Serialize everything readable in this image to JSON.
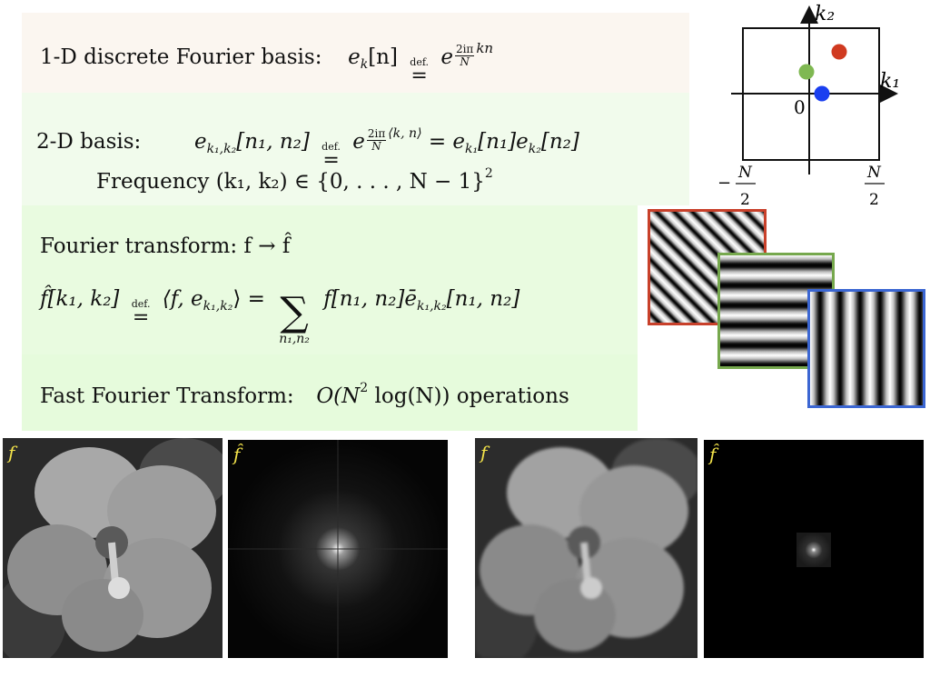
{
  "line_1d": {
    "label": "1-D discrete Fourier basis:",
    "lhs": "e",
    "lhs_sub": "k",
    "lhs_arg": "[n]",
    "defeq_label": "def.",
    "base": "e",
    "exp_num": "2iπ",
    "exp_den": "N",
    "exp_tail": "kn"
  },
  "line_2d": {
    "label": "2-D basis:",
    "lhs": "e",
    "lhs_sub": "k₁,k₂",
    "lhs_arg": "[n₁, n₂]",
    "defeq_label": "def.",
    "base": "e",
    "exp_num": "2iπ",
    "exp_den": "N",
    "exp_tail": "⟨k, n⟩",
    "rhs": "= e",
    "rhs_sub1": "k₁",
    "rhs_arg1": "[n₁]e",
    "rhs_sub2": "k₂",
    "rhs_arg2": "[n₂]",
    "freq_text": "Frequency (k₁, k₂) ∈ {0, . . . , N − 1}",
    "freq_sup": "2"
  },
  "line_ft": {
    "title": "Fourier transform:  f → f̂",
    "lhs": "f̂[k₁, k₂]",
    "defeq_label": "def.",
    "mid": "⟨f, e",
    "mid_sub": "k₁,k₂",
    "mid_close": "⟩ =",
    "sum_symbol": "∑",
    "sum_limits": "n₁,n₂",
    "rhs": "f[n₁, n₂]ē",
    "rhs_sub": "k₁,k₂",
    "rhs_arg": "[n₁, n₂]"
  },
  "line_fft": {
    "label": "Fast Fourier Transform:",
    "complexity_pre": "O(N",
    "complexity_sup": "2",
    "complexity_post": " log(N)) operations"
  },
  "freq_plot": {
    "axis_k1": "k₁",
    "axis_k2": "k₂",
    "origin": "0",
    "left_label_minus": "−",
    "half_num": "N",
    "half_den": "2",
    "dots": [
      {
        "name": "red",
        "color": "#d03a20"
      },
      {
        "name": "green",
        "color": "#7fb852"
      },
      {
        "name": "blue",
        "color": "#1a3ff0"
      }
    ]
  },
  "panels": {
    "f_label": "f",
    "fhat_label": "f̂"
  }
}
